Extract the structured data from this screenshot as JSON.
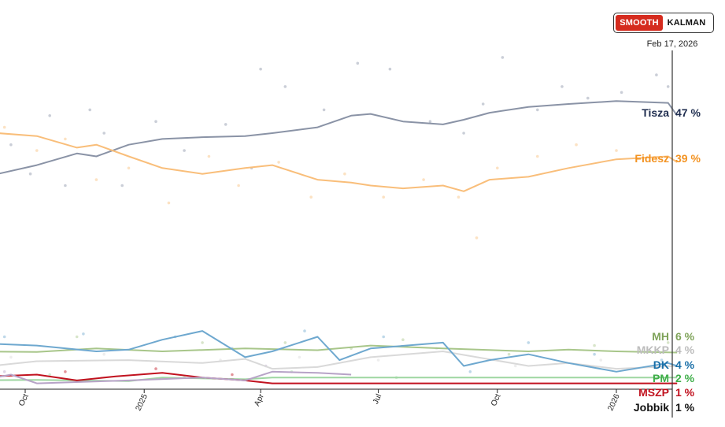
{
  "toggle": {
    "smooth_label": "SMOOTH",
    "kalman_label": "KALMAN",
    "selected": "SMOOTH"
  },
  "current_date_label": "Feb 17, 2026",
  "chart_data": {
    "type": "line",
    "ylim": [
      0,
      62
    ],
    "x_ticks": [
      {
        "label": "Oct",
        "date": "2024-10-01"
      },
      {
        "label": "2025",
        "date": "2025-01-01"
      },
      {
        "label": "Apr",
        "date": "2025-04-01"
      },
      {
        "label": "Jul",
        "date": "2025-07-01"
      },
      {
        "label": "Oct",
        "date": "2025-10-01"
      },
      {
        "label": "2026",
        "date": "2026-01-01"
      }
    ],
    "series": [
      {
        "name": "Tisza",
        "color": "#1f2d4f",
        "line_color": "#8a93a6",
        "label": "Tisza",
        "value_label": "47 %",
        "points": [
          [
            "2024-08-15",
            36
          ],
          [
            "2024-09-10",
            37
          ],
          [
            "2024-10-10",
            38.5
          ],
          [
            "2024-11-10",
            40.5
          ],
          [
            "2024-11-25",
            40
          ],
          [
            "2024-12-20",
            42
          ],
          [
            "2025-01-15",
            43
          ],
          [
            "2025-02-15",
            43.3
          ],
          [
            "2025-03-20",
            43.5
          ],
          [
            "2025-04-10",
            44
          ],
          [
            "2025-05-15",
            45
          ],
          [
            "2025-06-10",
            47
          ],
          [
            "2025-06-25",
            47.3
          ],
          [
            "2025-07-20",
            46
          ],
          [
            "2025-08-20",
            45.5
          ],
          [
            "2025-09-05",
            46.3
          ],
          [
            "2025-09-25",
            47.5
          ],
          [
            "2025-10-25",
            48.5
          ],
          [
            "2025-11-25",
            49
          ],
          [
            "2026-01-01",
            49.5
          ],
          [
            "2026-02-10",
            49.2
          ],
          [
            "2026-02-17",
            47
          ]
        ],
        "polls": [
          [
            "2024-08-20",
            33.5
          ],
          [
            "2024-09-20",
            42
          ],
          [
            "2024-10-05",
            37
          ],
          [
            "2024-10-20",
            47
          ],
          [
            "2024-11-01",
            35
          ],
          [
            "2024-11-20",
            48
          ],
          [
            "2024-12-01",
            44
          ],
          [
            "2024-12-15",
            35
          ],
          [
            "2025-01-10",
            46
          ],
          [
            "2025-02-01",
            41
          ],
          [
            "2025-03-05",
            45.5
          ],
          [
            "2025-03-25",
            38
          ],
          [
            "2025-04-01",
            55
          ],
          [
            "2025-04-20",
            52
          ],
          [
            "2025-05-20",
            48
          ],
          [
            "2025-06-15",
            56
          ],
          [
            "2025-07-10",
            55
          ],
          [
            "2025-08-10",
            46
          ],
          [
            "2025-09-05",
            44
          ],
          [
            "2025-09-20",
            49
          ],
          [
            "2025-10-05",
            57
          ],
          [
            "2025-11-01",
            48
          ],
          [
            "2025-11-20",
            52
          ],
          [
            "2025-12-10",
            50
          ],
          [
            "2026-01-05",
            51
          ],
          [
            "2026-02-01",
            54
          ],
          [
            "2026-02-10",
            52
          ]
        ]
      },
      {
        "name": "Fidesz",
        "color": "#f39322",
        "line_color": "#f9be7a",
        "label": "Fidesz",
        "value_label": "39 %",
        "points": [
          [
            "2024-08-15",
            45
          ],
          [
            "2024-09-10",
            44
          ],
          [
            "2024-10-10",
            43.5
          ],
          [
            "2024-11-10",
            41.5
          ],
          [
            "2024-11-25",
            42
          ],
          [
            "2024-12-20",
            40
          ],
          [
            "2025-01-15",
            38
          ],
          [
            "2025-02-15",
            37
          ],
          [
            "2025-03-20",
            38
          ],
          [
            "2025-04-10",
            38.5
          ],
          [
            "2025-05-15",
            36
          ],
          [
            "2025-06-10",
            35.5
          ],
          [
            "2025-06-25",
            35
          ],
          [
            "2025-07-20",
            34.5
          ],
          [
            "2025-08-20",
            35
          ],
          [
            "2025-09-05",
            34
          ],
          [
            "2025-09-25",
            36
          ],
          [
            "2025-10-25",
            36.5
          ],
          [
            "2025-11-25",
            38
          ],
          [
            "2026-01-01",
            39.5
          ],
          [
            "2026-02-10",
            40
          ],
          [
            "2026-02-17",
            39
          ]
        ],
        "polls": [
          [
            "2024-08-20",
            48
          ],
          [
            "2024-09-15",
            45
          ],
          [
            "2024-10-10",
            41
          ],
          [
            "2024-11-01",
            43
          ],
          [
            "2024-11-25",
            36
          ],
          [
            "2024-12-20",
            38
          ],
          [
            "2025-01-20",
            32
          ],
          [
            "2025-02-20",
            40
          ],
          [
            "2025-03-15",
            35
          ],
          [
            "2025-04-15",
            39
          ],
          [
            "2025-05-10",
            33
          ],
          [
            "2025-06-05",
            37
          ],
          [
            "2025-07-05",
            33
          ],
          [
            "2025-08-05",
            36
          ],
          [
            "2025-09-01",
            33
          ],
          [
            "2025-09-15",
            26
          ],
          [
            "2025-10-01",
            38
          ],
          [
            "2025-11-01",
            40
          ],
          [
            "2025-12-01",
            42
          ],
          [
            "2026-01-01",
            41
          ],
          [
            "2026-02-01",
            39.5
          ]
        ]
      },
      {
        "name": "MH",
        "color": "#7fa35a",
        "line_color": "#a8c68a",
        "label": "MH",
        "value_label": "6 %",
        "points": [
          [
            "2024-08-15",
            6.5
          ],
          [
            "2024-10-10",
            6.4
          ],
          [
            "2024-11-25",
            7
          ],
          [
            "2025-01-15",
            6.5
          ],
          [
            "2025-03-20",
            7
          ],
          [
            "2025-05-15",
            6.7
          ],
          [
            "2025-06-25",
            7.5
          ],
          [
            "2025-08-20",
            7
          ],
          [
            "2025-10-25",
            6.5
          ],
          [
            "2025-11-25",
            6.8
          ],
          [
            "2026-01-01",
            6.5
          ],
          [
            "2026-02-17",
            6.3
          ]
        ],
        "polls": [
          [
            "2024-09-10",
            8
          ],
          [
            "2024-11-10",
            9
          ],
          [
            "2025-02-15",
            8
          ],
          [
            "2025-04-20",
            8
          ],
          [
            "2025-06-10",
            7
          ],
          [
            "2025-07-20",
            8.5
          ],
          [
            "2025-10-10",
            6
          ],
          [
            "2025-12-15",
            7.5
          ],
          [
            "2026-02-10",
            8
          ]
        ]
      },
      {
        "name": "MKKP",
        "color": "#c6c6c6",
        "line_color": "#d9d9d9",
        "label": "MKKP",
        "value_label": "4 %",
        "points": [
          [
            "2024-08-15",
            3.5
          ],
          [
            "2024-10-10",
            4.8
          ],
          [
            "2024-12-20",
            5
          ],
          [
            "2025-02-15",
            4.5
          ],
          [
            "2025-03-20",
            5.2
          ],
          [
            "2025-04-10",
            3.5
          ],
          [
            "2025-05-15",
            3.8
          ],
          [
            "2025-06-25",
            5.5
          ],
          [
            "2025-08-20",
            6.5
          ],
          [
            "2025-10-25",
            4
          ],
          [
            "2025-11-25",
            4.5
          ],
          [
            "2026-01-01",
            3.5
          ],
          [
            "2026-02-17",
            4
          ]
        ],
        "polls": [
          [
            "2024-09-20",
            5.5
          ],
          [
            "2024-12-01",
            6
          ],
          [
            "2025-03-01",
            5
          ],
          [
            "2025-05-01",
            5.5
          ],
          [
            "2025-07-01",
            5
          ],
          [
            "2025-08-15",
            7
          ],
          [
            "2025-10-15",
            4
          ],
          [
            "2025-12-20",
            5
          ],
          [
            "2026-02-10",
            4
          ]
        ]
      },
      {
        "name": "DK",
        "color": "#1a6fa8",
        "line_color": "#6ea8cf",
        "label": "DK",
        "value_label": "4 %",
        "points": [
          [
            "2024-08-15",
            8
          ],
          [
            "2024-10-10",
            7.5
          ],
          [
            "2024-11-25",
            6.5
          ],
          [
            "2024-12-20",
            6.8
          ],
          [
            "2025-01-15",
            8.5
          ],
          [
            "2025-02-15",
            10
          ],
          [
            "2025-03-20",
            5.5
          ],
          [
            "2025-04-10",
            6.5
          ],
          [
            "2025-05-15",
            9
          ],
          [
            "2025-06-01",
            5
          ],
          [
            "2025-06-25",
            7
          ],
          [
            "2025-08-20",
            8
          ],
          [
            "2025-09-05",
            4
          ],
          [
            "2025-09-25",
            5
          ],
          [
            "2025-10-25",
            6
          ],
          [
            "2025-11-25",
            4.5
          ],
          [
            "2026-01-01",
            3
          ],
          [
            "2026-02-10",
            4.5
          ],
          [
            "2026-02-17",
            4
          ]
        ],
        "polls": [
          [
            "2024-09-15",
            9
          ],
          [
            "2024-11-15",
            9.5
          ],
          [
            "2025-01-25",
            9
          ],
          [
            "2025-03-10",
            7
          ],
          [
            "2025-05-05",
            10
          ],
          [
            "2025-07-05",
            9
          ],
          [
            "2025-09-10",
            3
          ],
          [
            "2025-10-25",
            8
          ],
          [
            "2025-12-15",
            6
          ],
          [
            "2026-02-05",
            5
          ]
        ]
      },
      {
        "name": "PM",
        "color": "#3fae49",
        "line_color": "#9ed6a1",
        "label": "PM",
        "value_label": "2 %",
        "points": [
          [
            "2024-08-15",
            1.5
          ],
          [
            "2024-10-10",
            1.6
          ],
          [
            "2024-12-20",
            1.4
          ],
          [
            "2025-01-15",
            2
          ],
          [
            "2025-03-20",
            1.7
          ],
          [
            "2025-04-10",
            2
          ],
          [
            "2025-06-25",
            2
          ],
          [
            "2025-08-20",
            2
          ],
          [
            "2025-10-25",
            2
          ],
          [
            "2026-01-01",
            2
          ],
          [
            "2026-02-17",
            2
          ]
        ],
        "polls": [
          [
            "2024-10-20",
            2.5
          ],
          [
            "2025-02-01",
            2
          ],
          [
            "2025-04-25",
            3
          ],
          [
            "2025-07-15",
            2
          ]
        ]
      },
      {
        "name": "MSZP",
        "color": "#c1121f",
        "line_color": "#c1121f",
        "label": "MSZP",
        "value_label": "1 %",
        "points": [
          [
            "2024-08-15",
            2
          ],
          [
            "2024-10-10",
            2.5
          ],
          [
            "2024-11-10",
            1.5
          ],
          [
            "2024-12-10",
            2.2
          ],
          [
            "2025-01-15",
            2.8
          ],
          [
            "2025-02-15",
            2
          ],
          [
            "2025-03-20",
            1.5
          ],
          [
            "2025-04-10",
            1
          ],
          [
            "2026-02-17",
            1
          ]
        ],
        "polls": [
          [
            "2024-11-01",
            3
          ],
          [
            "2025-01-10",
            3.5
          ],
          [
            "2025-03-10",
            2.5
          ]
        ]
      },
      {
        "name": "Jobbik",
        "color": "#111111",
        "line_color": "#b7a3c7",
        "label": "Jobbik",
        "value_label": "1 %",
        "points": [
          [
            "2024-08-15",
            1
          ],
          [
            "2024-09-20",
            2.5
          ],
          [
            "2024-10-10",
            1
          ],
          [
            "2024-12-20",
            1.5
          ],
          [
            "2025-02-15",
            2
          ],
          [
            "2025-03-20",
            1.5
          ],
          [
            "2025-04-10",
            3
          ],
          [
            "2025-05-15",
            2.8
          ],
          [
            "2025-06-10",
            2.5
          ]
        ],
        "polls": [
          [
            "2024-09-15",
            3
          ],
          [
            "2025-04-05",
            4
          ]
        ]
      }
    ]
  }
}
